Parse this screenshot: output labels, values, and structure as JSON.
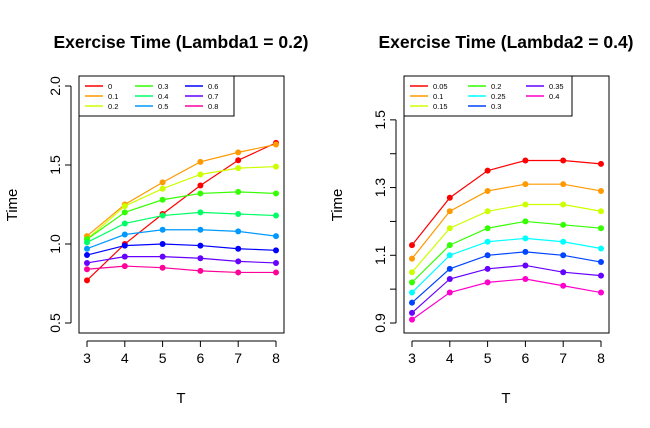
{
  "chart_data": [
    {
      "type": "line",
      "title": "Exercise Time (Lambda1 = 0.2)",
      "xlabel": "T",
      "ylabel": "Time",
      "x": [
        3,
        4,
        5,
        6,
        7,
        8
      ],
      "xticks": [
        "3",
        "4",
        "5",
        "6",
        "7",
        "8"
      ],
      "yticks": [
        {
          "value": 0.5,
          "label": "0.5"
        },
        {
          "value": 1.0,
          "label": "1.0"
        },
        {
          "value": 1.5,
          "label": "1.5"
        },
        {
          "value": 2.0,
          "label": "2.0"
        }
      ],
      "xlim": [
        3,
        8
      ],
      "ylim": [
        0.5,
        2.0
      ],
      "grid": false,
      "legend_position": "top-left",
      "legend_columns": 3,
      "series": [
        {
          "name": "0",
          "color": "#FF0000",
          "values": [
            0.77,
            1.0,
            1.19,
            1.37,
            1.53,
            1.64
          ]
        },
        {
          "name": "0.1",
          "color": "#FF9900",
          "values": [
            1.05,
            1.25,
            1.39,
            1.52,
            1.58,
            1.63
          ]
        },
        {
          "name": "0.2",
          "color": "#CCFF00",
          "values": [
            1.03,
            1.24,
            1.35,
            1.44,
            1.48,
            1.49
          ]
        },
        {
          "name": "0.3",
          "color": "#33FF00",
          "values": [
            1.03,
            1.2,
            1.28,
            1.32,
            1.33,
            1.32
          ]
        },
        {
          "name": "0.4",
          "color": "#00FF66",
          "values": [
            1.01,
            1.13,
            1.18,
            1.2,
            1.19,
            1.18
          ]
        },
        {
          "name": "0.5",
          "color": "#0099FF",
          "values": [
            0.97,
            1.06,
            1.09,
            1.09,
            1.08,
            1.05
          ]
        },
        {
          "name": "0.6",
          "color": "#0000FF",
          "values": [
            0.93,
            0.99,
            1.0,
            0.99,
            0.97,
            0.96
          ]
        },
        {
          "name": "0.7",
          "color": "#6600FF",
          "values": [
            0.88,
            0.92,
            0.92,
            0.91,
            0.89,
            0.88
          ]
        },
        {
          "name": "0.8",
          "color": "#FF0099",
          "values": [
            0.84,
            0.86,
            0.85,
            0.83,
            0.82,
            0.82
          ]
        }
      ]
    },
    {
      "type": "line",
      "title": "Exercise Time (Lambda2 = 0.4)",
      "xlabel": "T",
      "ylabel": "Time",
      "x": [
        3,
        4,
        5,
        6,
        7,
        8
      ],
      "xticks": [
        "3",
        "4",
        "5",
        "6",
        "7",
        "8"
      ],
      "yticks": [
        {
          "value": 0.9,
          "label": "0.9"
        },
        {
          "value": 1.0,
          "label": ""
        },
        {
          "value": 1.1,
          "label": "1.1"
        },
        {
          "value": 1.2,
          "label": ""
        },
        {
          "value": 1.3,
          "label": "1.3"
        },
        {
          "value": 1.4,
          "label": ""
        },
        {
          "value": 1.5,
          "label": "1.5"
        }
      ],
      "xlim": [
        3,
        8
      ],
      "ylim": [
        0.9,
        1.6
      ],
      "grid": false,
      "legend_position": "top-left",
      "legend_columns": 3,
      "series": [
        {
          "name": "0.05",
          "color": "#FF0000",
          "values": [
            1.13,
            1.27,
            1.35,
            1.38,
            1.38,
            1.37
          ]
        },
        {
          "name": "0.1",
          "color": "#FF9900",
          "values": [
            1.09,
            1.23,
            1.29,
            1.31,
            1.31,
            1.29
          ]
        },
        {
          "name": "0.15",
          "color": "#CCFF00",
          "values": [
            1.05,
            1.18,
            1.23,
            1.25,
            1.25,
            1.23
          ]
        },
        {
          "name": "0.2",
          "color": "#33FF00",
          "values": [
            1.02,
            1.13,
            1.18,
            1.2,
            1.19,
            1.18
          ]
        },
        {
          "name": "0.25",
          "color": "#00FFFF",
          "values": [
            0.99,
            1.1,
            1.14,
            1.15,
            1.14,
            1.12
          ]
        },
        {
          "name": "0.3",
          "color": "#0044FF",
          "values": [
            0.96,
            1.06,
            1.1,
            1.11,
            1.1,
            1.08
          ]
        },
        {
          "name": "0.35",
          "color": "#6600FF",
          "values": [
            0.93,
            1.03,
            1.06,
            1.07,
            1.05,
            1.04
          ]
        },
        {
          "name": "0.4",
          "color": "#FF00CC",
          "values": [
            0.91,
            0.99,
            1.02,
            1.03,
            1.01,
            0.99
          ]
        }
      ]
    }
  ]
}
